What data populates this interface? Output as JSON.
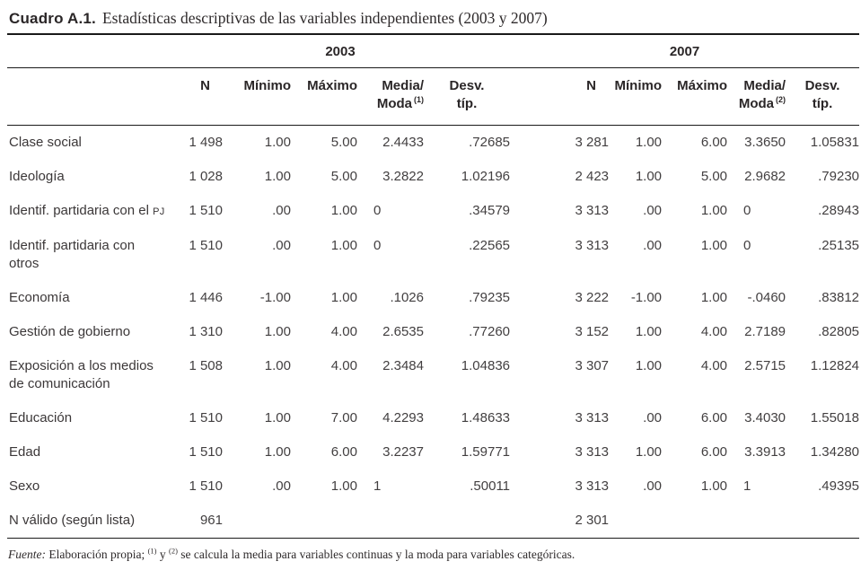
{
  "title": {
    "number": "Cuadro A.1.",
    "caption": "Estadísticas descriptivas de las variables independientes (2003 y 2007)"
  },
  "groups": {
    "g2003": "2003",
    "g2007": "2007"
  },
  "columns": {
    "c2003": [
      {
        "l1": "N"
      },
      {
        "l1": "Mínimo"
      },
      {
        "l1": "Máximo"
      },
      {
        "l1": "Media/",
        "l2": "Moda",
        "sup": "(1)"
      },
      {
        "l1": "Desv.",
        "l2": "típ."
      }
    ],
    "c2007": [
      {
        "l1": "N"
      },
      {
        "l1": "Mínimo"
      },
      {
        "l1": "Máximo"
      },
      {
        "l1": "Media/",
        "l2": "Moda",
        "sup": "(2)"
      },
      {
        "l1": "Desv.",
        "l2": "típ."
      }
    ]
  },
  "rows": [
    {
      "label_lines": [
        "Clase social"
      ],
      "v2003": [
        "1 498",
        "1.00",
        "5.00",
        "2.4433",
        ".72685"
      ],
      "v2007": [
        "3 281",
        "1.00",
        "6.00",
        "3.3650",
        "1.05831"
      ]
    },
    {
      "label_lines": [
        "Ideología"
      ],
      "v2003": [
        "1 028",
        "1.00",
        "5.00",
        "3.2822",
        "1.02196"
      ],
      "v2007": [
        "2 423",
        "1.00",
        "5.00",
        "2.9682",
        ".79230"
      ]
    },
    {
      "label_lines": [
        "Identif. partidaria con el"
      ],
      "smallcaps_suffix": "PJ",
      "v2003": [
        "1 510",
        ".00",
        "1.00",
        "0",
        ".34579"
      ],
      "v2007": [
        "3 313",
        ".00",
        "1.00",
        "0",
        ".28943"
      ]
    },
    {
      "label_lines": [
        "Identif. partidaria con",
        "otros"
      ],
      "v2003": [
        "1 510",
        ".00",
        "1.00",
        "0",
        ".22565"
      ],
      "v2007": [
        "3 313",
        ".00",
        "1.00",
        "0",
        ".25135"
      ]
    },
    {
      "label_lines": [
        "Economía"
      ],
      "v2003": [
        "1 446",
        "-1.00",
        "1.00",
        ".1026",
        ".79235"
      ],
      "v2007": [
        "3 222",
        "-1.00",
        "1.00",
        "-.0460",
        ".83812"
      ]
    },
    {
      "label_lines": [
        "Gestión de gobierno"
      ],
      "v2003": [
        "1 310",
        "1.00",
        "4.00",
        "2.6535",
        ".77260"
      ],
      "v2007": [
        "3 152",
        "1.00",
        "4.00",
        "2.7189",
        ".82805"
      ]
    },
    {
      "label_lines": [
        "Exposición a los medios",
        "de comunicación"
      ],
      "v2003": [
        "1 508",
        "1.00",
        "4.00",
        "2.3484",
        "1.04836"
      ],
      "v2007": [
        "3 307",
        "1.00",
        "4.00",
        "2.5715",
        "1.12824"
      ]
    },
    {
      "label_lines": [
        "Educación"
      ],
      "v2003": [
        "1 510",
        "1.00",
        "7.00",
        "4.2293",
        "1.48633"
      ],
      "v2007": [
        "3 313",
        ".00",
        "6.00",
        "3.4030",
        "1.55018"
      ]
    },
    {
      "label_lines": [
        "Edad"
      ],
      "v2003": [
        "1 510",
        "1.00",
        "6.00",
        "3.2237",
        "1.59771"
      ],
      "v2007": [
        "3 313",
        "1.00",
        "6.00",
        "3.3913",
        "1.34280"
      ]
    },
    {
      "label_lines": [
        "Sexo"
      ],
      "v2003": [
        "1 510",
        ".00",
        "1.00",
        "1",
        ".50011"
      ],
      "v2007": [
        "3 313",
        ".00",
        "1.00",
        "1",
        ".49395"
      ]
    },
    {
      "label_lines": [
        "N válido (según lista)"
      ],
      "v2003": [
        "961",
        "",
        "",
        "",
        ""
      ],
      "v2007": [
        "2 301",
        "",
        "",
        "",
        ""
      ]
    }
  ],
  "footnote": {
    "source": "Fuente:",
    "lead": " Elaboración propia; ",
    "sup1": "(1)",
    "conj": " y ",
    "sup2": "(2)",
    "rest": " se calcula la media para variables continuas y la moda para variables categóricas."
  }
}
